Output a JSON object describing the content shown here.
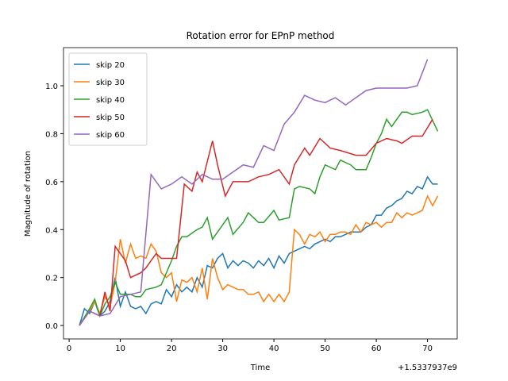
{
  "chart_data": {
    "type": "line",
    "title": "Rotation error for EPnP method",
    "x_label": "Time",
    "y_label": "Magnitude of rotation",
    "x_offset_label": "+1.5337937e9",
    "xlim": [
      -1.1,
      75.8
    ],
    "ylim": [
      -0.056,
      1.159
    ],
    "xticks": [
      0,
      10,
      20,
      30,
      40,
      50,
      60,
      70
    ],
    "yticks": [
      {
        "value": 0,
        "label": "0.0"
      },
      0.2,
      0.4,
      0.6,
      0.8,
      {
        "value": 1,
        "label": "1.0"
      }
    ],
    "legend": "upper left",
    "series": [
      {
        "name": "skip 20",
        "color": "#1f77b4",
        "x": [
          2,
          3,
          4,
          5,
          6,
          7,
          8,
          9,
          10,
          11,
          12,
          13,
          14,
          15,
          16,
          17,
          18,
          19,
          20,
          21,
          22,
          23,
          24,
          25,
          26,
          27,
          28,
          29,
          30,
          31,
          32,
          33,
          34,
          35,
          36,
          37,
          38,
          39,
          40,
          41,
          42,
          43,
          44,
          45,
          46,
          47,
          48,
          49,
          50,
          51,
          52,
          53,
          54,
          55,
          56,
          57,
          58,
          59,
          60,
          61,
          62,
          63,
          64,
          65,
          66,
          67,
          68,
          69,
          70,
          71,
          72
        ],
        "values": [
          0,
          0.07,
          0.05,
          0.1,
          0.04,
          0.06,
          0.1,
          0.2,
          0.08,
          0.14,
          0.08,
          0.07,
          0.08,
          0.05,
          0.09,
          0.1,
          0.09,
          0.15,
          0.12,
          0.17,
          0.14,
          0.16,
          0.14,
          0.2,
          0.16,
          0.25,
          0.24,
          0.28,
          0.3,
          0.24,
          0.27,
          0.25,
          0.27,
          0.26,
          0.24,
          0.27,
          0.25,
          0.28,
          0.24,
          0.29,
          0.26,
          0.3,
          0.31,
          0.32,
          0.33,
          0.32,
          0.34,
          0.35,
          0.36,
          0.35,
          0.37,
          0.37,
          0.38,
          0.39,
          0.39,
          0.39,
          0.41,
          0.42,
          0.46,
          0.46,
          0.49,
          0.5,
          0.52,
          0.53,
          0.56,
          0.55,
          0.58,
          0.57,
          0.62,
          0.59,
          0.59
        ]
      },
      {
        "name": "skip 30",
        "color": "#ff7f0e",
        "x": [
          2,
          3,
          4,
          5,
          6,
          7,
          8,
          9,
          10,
          11,
          12,
          13,
          14,
          15,
          16,
          17,
          18,
          19,
          20,
          21,
          22,
          23,
          24,
          25,
          26,
          27,
          28,
          29,
          30,
          31,
          32,
          33,
          34,
          35,
          36,
          37,
          38,
          39,
          40,
          41,
          42,
          43,
          44,
          45,
          46,
          47,
          48,
          49,
          50,
          51,
          52,
          53,
          54,
          55,
          56,
          57,
          58,
          59,
          60,
          61,
          62,
          63,
          64,
          65,
          66,
          67,
          68,
          69,
          70,
          71,
          72
        ],
        "values": [
          0,
          0.03,
          0.06,
          0.1,
          0.05,
          0.12,
          0.08,
          0.18,
          0.36,
          0.26,
          0.34,
          0.28,
          0.29,
          0.28,
          0.34,
          0.31,
          0.22,
          0.2,
          0.22,
          0.1,
          0.19,
          0.18,
          0.2,
          0.14,
          0.24,
          0.11,
          0.28,
          0.2,
          0.15,
          0.17,
          0.16,
          0.15,
          0.15,
          0.13,
          0.13,
          0.14,
          0.1,
          0.13,
          0.1,
          0.13,
          0.1,
          0.14,
          0.4,
          0.38,
          0.34,
          0.38,
          0.37,
          0.39,
          0.35,
          0.38,
          0.38,
          0.39,
          0.39,
          0.38,
          0.42,
          0.39,
          0.43,
          0.42,
          0.43,
          0.41,
          0.43,
          0.43,
          0.47,
          0.45,
          0.47,
          0.46,
          0.47,
          0.48,
          0.54,
          0.5,
          0.54
        ]
      },
      {
        "name": "skip 40",
        "color": "#2ca02c",
        "x": [
          2,
          4,
          5,
          6,
          7,
          8,
          9,
          10,
          12,
          13,
          14,
          15,
          17,
          18,
          20,
          21,
          22,
          23,
          25,
          26,
          27,
          28,
          30,
          31,
          32,
          34,
          35,
          37,
          38,
          40,
          41,
          43,
          44,
          45,
          47,
          48,
          49,
          50,
          52,
          53,
          55,
          56,
          58,
          59,
          60,
          61,
          62,
          63,
          65,
          66,
          67,
          69,
          70,
          72
        ],
        "values": [
          0,
          0.07,
          0.11,
          0.04,
          0.09,
          0.12,
          0.18,
          0.13,
          0.13,
          0.12,
          0.12,
          0.15,
          0.16,
          0.17,
          0.27,
          0.33,
          0.37,
          0.37,
          0.4,
          0.41,
          0.45,
          0.36,
          0.42,
          0.45,
          0.38,
          0.43,
          0.47,
          0.43,
          0.43,
          0.48,
          0.44,
          0.45,
          0.57,
          0.58,
          0.57,
          0.55,
          0.62,
          0.67,
          0.65,
          0.69,
          0.67,
          0.65,
          0.65,
          0.7,
          0.76,
          0.8,
          0.86,
          0.83,
          0.89,
          0.89,
          0.88,
          0.89,
          0.9,
          0.81
        ]
      },
      {
        "name": "skip 50",
        "color": "#d62728",
        "x": [
          2,
          4,
          6,
          7,
          8,
          9,
          11,
          12,
          14,
          15,
          17,
          18,
          19,
          20,
          21,
          22.5,
          24,
          25,
          26,
          28,
          29,
          30.5,
          32,
          35,
          37,
          39,
          41,
          43,
          44,
          46,
          47,
          49,
          51,
          53,
          56,
          58,
          60,
          62,
          64,
          65,
          67,
          69,
          71
        ],
        "values": [
          0,
          0.06,
          0.04,
          0.14,
          0.06,
          0.33,
          0.27,
          0.2,
          0.22,
          0.24,
          0.3,
          0.28,
          0.28,
          0.28,
          0.28,
          0.59,
          0.56,
          0.64,
          0.6,
          0.77,
          0.67,
          0.54,
          0.6,
          0.6,
          0.62,
          0.63,
          0.65,
          0.59,
          0.67,
          0.74,
          0.71,
          0.78,
          0.74,
          0.73,
          0.71,
          0.71,
          0.76,
          0.78,
          0.77,
          0.76,
          0.79,
          0.79,
          0.86
        ]
      },
      {
        "name": "skip 60",
        "color": "#9467bd",
        "x": [
          2,
          4,
          6,
          8,
          10,
          12,
          14,
          16,
          18,
          20,
          22,
          24,
          26,
          28,
          30,
          32,
          34,
          36,
          38,
          40,
          42,
          44,
          46,
          48,
          50,
          52,
          54,
          56,
          58,
          60,
          62,
          64,
          66,
          68,
          70
        ],
        "values": [
          0,
          0.06,
          0.04,
          0.05,
          0.12,
          0.13,
          0.14,
          0.63,
          0.57,
          0.59,
          0.62,
          0.59,
          0.63,
          0.61,
          0.61,
          0.64,
          0.67,
          0.66,
          0.75,
          0.73,
          0.84,
          0.89,
          0.96,
          0.94,
          0.93,
          0.95,
          0.92,
          0.95,
          0.98,
          0.99,
          0.99,
          0.99,
          0.99,
          1.0,
          1.11
        ]
      }
    ]
  }
}
